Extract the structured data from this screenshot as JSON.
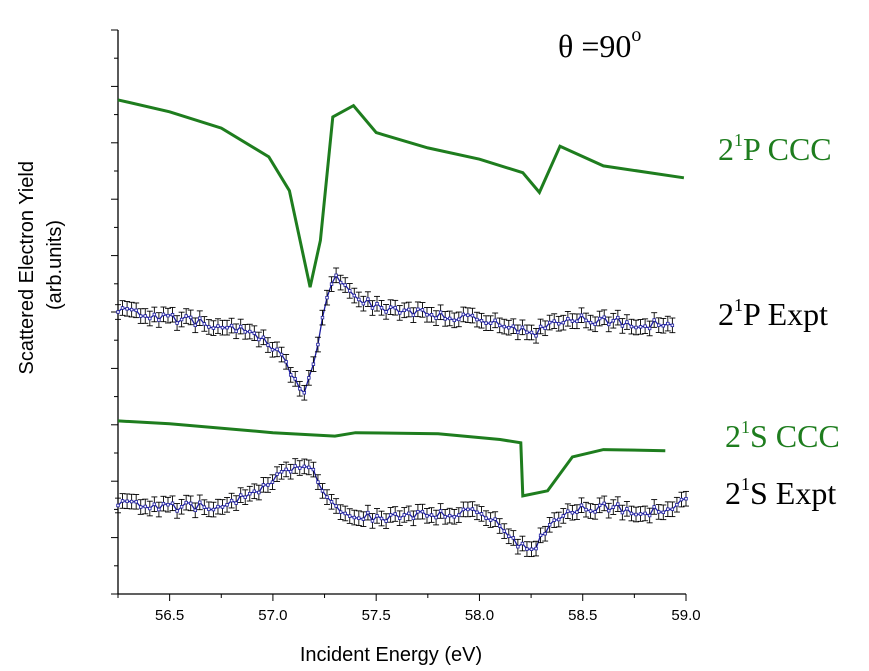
{
  "chart_data": {
    "type": "line",
    "title_parts": {
      "theta": "θ =90",
      "degree": "o"
    },
    "xlabel": "Incident Energy (eV)",
    "ylabel_line1": "Scattered Electron Yield",
    "ylabel_line2": "(arb.units)",
    "xlim": [
      56.25,
      59.0
    ],
    "x_ticks": [
      "56.5",
      "57.0",
      "57.5",
      "58.0",
      "58.5",
      "59.0"
    ],
    "x_tick_values": [
      56.5,
      57.0,
      57.5,
      58.0,
      58.5,
      59.0
    ],
    "ylim": [
      0,
      100
    ],
    "y_scale": "arbitrary (offset curves, no tick labels)",
    "colors": {
      "theory": "#1e7d1e",
      "expt_points": "#000000",
      "expt_fit": "#1c1ca0"
    },
    "series": [
      {
        "name": "2¹P CCC",
        "label_parts": {
          "main": "2",
          "sup": "1",
          "rest": "P CCC"
        },
        "color": "#1e7d1e",
        "x": [
          56.25,
          56.5,
          56.75,
          56.98,
          57.08,
          57.18,
          57.23,
          57.29,
          57.39,
          57.5,
          57.75,
          58.0,
          58.21,
          58.29,
          58.39,
          58.6,
          58.99
        ],
        "y": [
          87.6,
          85.5,
          82.6,
          77.5,
          71.5,
          54.4,
          62.7,
          84.6,
          86.6,
          81.8,
          79.1,
          77.1,
          74.7,
          71.2,
          79.4,
          75.9,
          73.8
        ]
      },
      {
        "name": "2¹P Expt",
        "label_parts": {
          "main": "2",
          "sup": "1",
          "rest": "P Expt"
        },
        "color": "#000000",
        "fit_color": "#1c1ca0",
        "error": 1.3,
        "x": [
          56.25,
          56.4,
          56.6,
          56.8,
          56.95,
          57.05,
          57.1,
          57.15,
          57.2,
          57.25,
          57.3,
          57.35,
          57.45,
          57.6,
          57.8,
          58.0,
          58.15,
          58.25,
          58.3,
          58.4,
          58.6,
          58.8,
          58.95
        ],
        "y": [
          50.2,
          49.3,
          48.5,
          47.3,
          45.1,
          41.6,
          38.2,
          36.0,
          40.5,
          50.6,
          56.7,
          55.0,
          51.8,
          50.2,
          49.3,
          48.5,
          47.6,
          45.8,
          46.8,
          48.9,
          48.5,
          47.8,
          48.2
        ]
      },
      {
        "name": "2¹S CCC",
        "label_parts": {
          "main": "2",
          "sup": "1",
          "rest": "S CCC"
        },
        "color": "#1e7d1e",
        "x": [
          56.25,
          56.5,
          57.0,
          57.3,
          57.4,
          57.8,
          58.1,
          58.2,
          58.21,
          58.33,
          58.45,
          58.6,
          58.9
        ],
        "y": [
          30.7,
          30.2,
          28.6,
          28.0,
          28.6,
          28.4,
          27.4,
          26.8,
          17.4,
          18.3,
          24.3,
          25.6,
          25.4
        ]
      },
      {
        "name": "2¹S Expt",
        "label_parts": {
          "main": "2",
          "sup": "1",
          "rest": "S Expt"
        },
        "color": "#000000",
        "fit_color": "#1c1ca0",
        "error": 1.3,
        "x": [
          56.25,
          56.5,
          56.75,
          56.9,
          57.05,
          57.15,
          57.2,
          57.25,
          57.35,
          57.5,
          57.75,
          58.0,
          58.1,
          58.2,
          58.25,
          58.3,
          58.4,
          58.6,
          58.8,
          58.9,
          59.0
        ],
        "y": [
          15.9,
          15.4,
          15.7,
          17.4,
          21.3,
          23.2,
          21.3,
          17.0,
          14.5,
          13.6,
          13.9,
          14.4,
          12.3,
          8.4,
          7.3,
          9.9,
          14.6,
          15.5,
          14.6,
          15.0,
          16.6
        ]
      }
    ]
  }
}
